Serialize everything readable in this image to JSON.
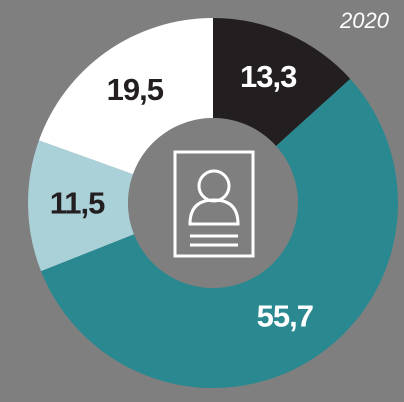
{
  "chart_data": {
    "type": "donut",
    "annotation": "2020",
    "categories": [
      null,
      null,
      null,
      null
    ],
    "values": [
      13.3,
      55.7,
      11.5,
      19.5
    ],
    "value_labels": [
      "13,3",
      "55,7",
      "11,5",
      "19,5"
    ],
    "colors": [
      "#231f20",
      "#2a8890",
      "#a9d1d7",
      "#ffffff"
    ]
  }
}
